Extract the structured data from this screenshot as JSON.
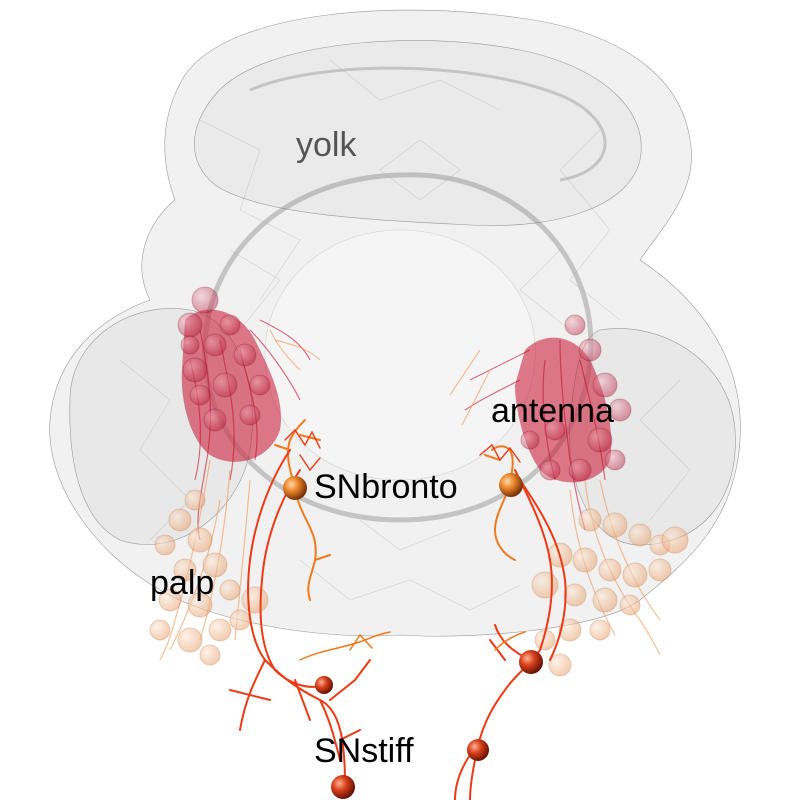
{
  "labels": {
    "yolk": "yolk",
    "antenna": "antenna",
    "snbronto": "SNbronto",
    "palp": "palp",
    "snstiff": "SNstiff"
  },
  "colors": {
    "mesh_fill": "#e4e4e4",
    "mesh_edge": "#9a9a9a",
    "antenna_cluster": "#c8102e",
    "palp_cluster": "#f3a36b",
    "snbronto_neuron": "#f07a1c",
    "snstiff_neuron": "#ee3a14",
    "soma_dark": "#c8341a",
    "yolk_label": "#555555",
    "text": "#000000"
  }
}
